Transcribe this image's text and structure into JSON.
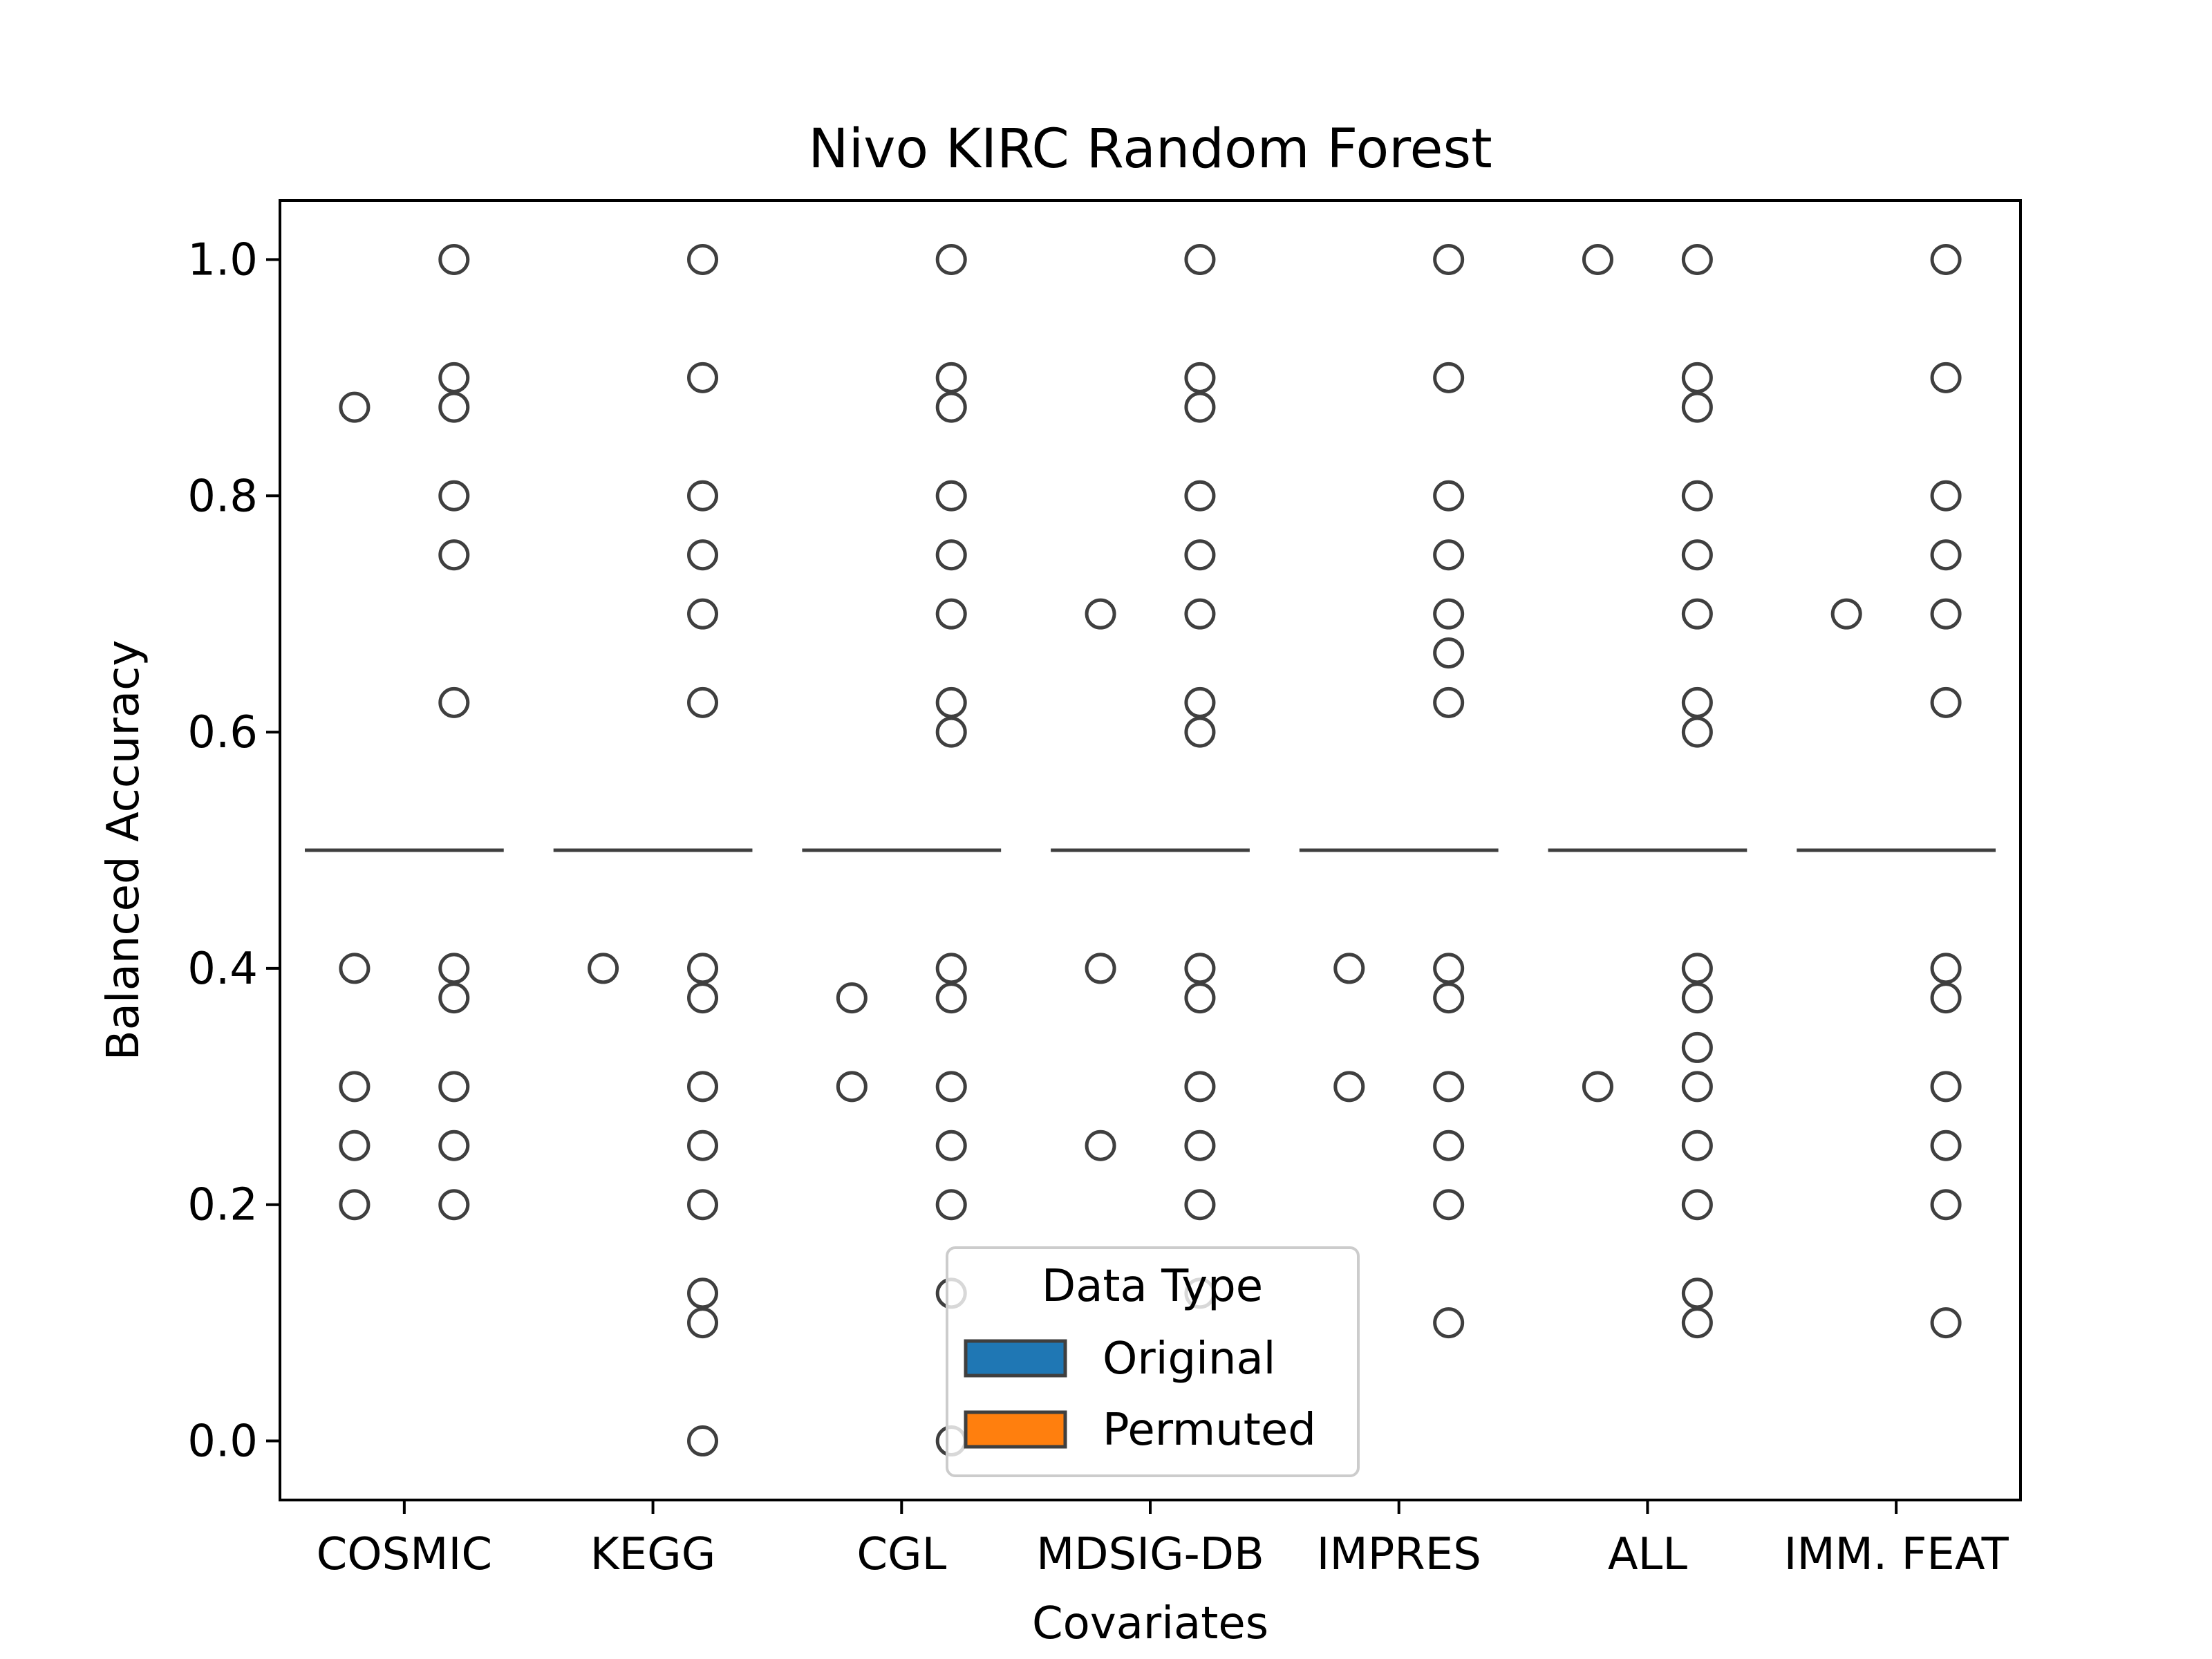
{
  "chart_data": {
    "type": "box",
    "title": "Nivo  KIRC  Random Forest",
    "xlabel": "Covariates",
    "ylabel": "Balanced Accuracy",
    "categories": [
      "COSMIC",
      "KEGG",
      "CGL",
      "MDSIG-DB",
      "IMPRES",
      "ALL",
      "IMM. FEAT"
    ],
    "ylim": [
      -0.05,
      1.05
    ],
    "yticks": [
      "0.0",
      "0.2",
      "0.4",
      "0.6",
      "0.8",
      "1.0"
    ],
    "ytick_values": [
      0.0,
      0.2,
      0.4,
      0.6,
      0.8,
      1.0
    ],
    "median": 0.5,
    "series": [
      {
        "name": "Original",
        "color": "#1f77b4",
        "outliers": [
          [
            0.875,
            0.4,
            0.3,
            0.25,
            0.2
          ],
          [
            0.4
          ],
          [
            0.375,
            0.3
          ],
          [
            0.7,
            0.4,
            0.25
          ],
          [
            0.4,
            0.3
          ],
          [
            1.0,
            0.3
          ],
          [
            0.7
          ]
        ]
      },
      {
        "name": "Permuted",
        "color": "#ff7f0e",
        "outliers": [
          [
            1.0,
            0.9,
            0.875,
            0.8,
            0.75,
            0.625,
            0.4,
            0.375,
            0.3,
            0.25,
            0.2
          ],
          [
            1.0,
            0.9,
            0.8,
            0.75,
            0.7,
            0.625,
            0.4,
            0.375,
            0.3,
            0.25,
            0.2,
            0.125,
            0.1,
            0.0
          ],
          [
            1.0,
            0.9,
            0.875,
            0.8,
            0.75,
            0.7,
            0.625,
            0.6,
            0.4,
            0.375,
            0.3,
            0.25,
            0.2,
            0.125,
            0.0
          ],
          [
            1.0,
            0.9,
            0.875,
            0.8,
            0.75,
            0.7,
            0.625,
            0.6,
            0.4,
            0.375,
            0.3,
            0.25,
            0.2,
            0.125
          ],
          [
            1.0,
            0.9,
            0.8,
            0.75,
            0.7,
            0.667,
            0.625,
            0.4,
            0.375,
            0.3,
            0.25,
            0.2,
            0.1
          ],
          [
            1.0,
            0.9,
            0.875,
            0.8,
            0.75,
            0.7,
            0.625,
            0.6,
            0.4,
            0.375,
            0.333,
            0.3,
            0.25,
            0.2,
            0.125,
            0.1
          ],
          [
            1.0,
            0.9,
            0.8,
            0.75,
            0.7,
            0.625,
            0.4,
            0.375,
            0.3,
            0.25,
            0.2,
            0.1
          ]
        ]
      }
    ],
    "legend": {
      "title": "Data Type",
      "entries": [
        "Original",
        "Permuted"
      ],
      "placement": "lower-center"
    },
    "grid": false
  }
}
